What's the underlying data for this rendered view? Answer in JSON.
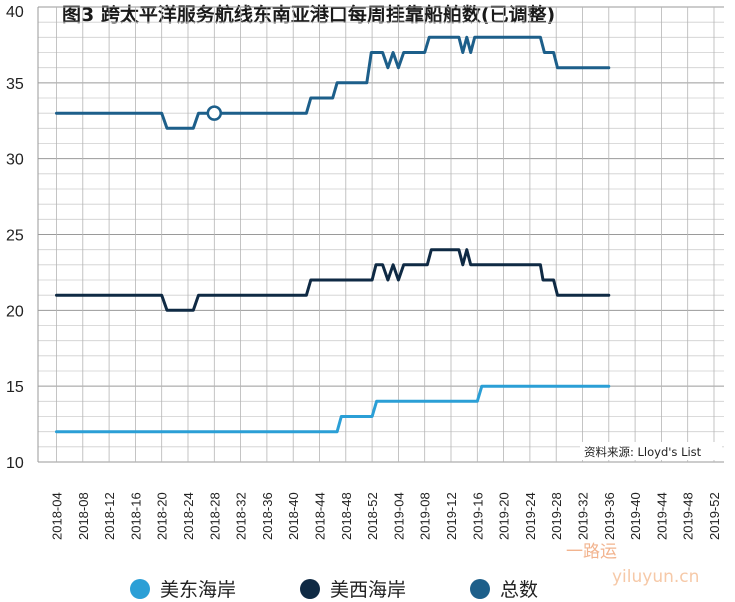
{
  "chart_data": {
    "type": "line",
    "title": "图3  跨太平洋服务航线东南亚港口每周挂靠船舶数(已调整)",
    "source": "资料来源: Lloyd's List",
    "ylim": [
      10,
      40
    ],
    "yticks": [
      10,
      15,
      20,
      25,
      30,
      35,
      40
    ],
    "grid": true,
    "legend_position": "bottom",
    "categories": [
      "2018-04",
      "2018-08",
      "2018-12",
      "2018-16",
      "2018-20",
      "2018-24",
      "2018-28",
      "2018-32",
      "2018-36",
      "2018-40",
      "2018-44",
      "2018-48",
      "2018-52",
      "2019-04",
      "2019-08",
      "2019-12",
      "2019-16",
      "2019-20",
      "2019-24",
      "2019-28",
      "2019-32",
      "2019-36",
      "2019-40",
      "2019-44",
      "2019-48",
      "2019-52"
    ],
    "series": [
      {
        "name": "美东海岸",
        "color": "#2b9fd6",
        "points": [
          [
            0,
            12
          ],
          [
            10.67,
            12
          ],
          [
            10.83,
            13
          ],
          [
            12.0,
            13
          ],
          [
            12.17,
            14
          ],
          [
            16.0,
            14
          ],
          [
            16.17,
            15
          ],
          [
            21.0,
            15
          ]
        ]
      },
      {
        "name": "美西海岸",
        "color": "#0f2a44",
        "points": [
          [
            0,
            21
          ],
          [
            4.0,
            21
          ],
          [
            4.2,
            20
          ],
          [
            5.2,
            20
          ],
          [
            5.4,
            21
          ],
          [
            9.5,
            21
          ],
          [
            9.67,
            22
          ],
          [
            12.0,
            22
          ],
          [
            12.15,
            23
          ],
          [
            12.4,
            23
          ],
          [
            12.6,
            22
          ],
          [
            12.8,
            23
          ],
          [
            13.0,
            22
          ],
          [
            13.2,
            23
          ],
          [
            14.1,
            23
          ],
          [
            14.25,
            24
          ],
          [
            15.3,
            24
          ],
          [
            15.45,
            23
          ],
          [
            15.6,
            24
          ],
          [
            15.75,
            23
          ],
          [
            18.4,
            23
          ],
          [
            18.5,
            22
          ],
          [
            18.9,
            22
          ],
          [
            19.05,
            21
          ],
          [
            21.0,
            21
          ]
        ]
      },
      {
        "name": "总数",
        "color": "#1d5f8a",
        "points": [
          [
            0,
            33
          ],
          [
            4.0,
            33
          ],
          [
            4.2,
            32
          ],
          [
            5.2,
            32
          ],
          [
            5.4,
            33
          ],
          [
            9.5,
            33
          ],
          [
            9.67,
            34
          ],
          [
            10.5,
            34
          ],
          [
            10.67,
            35
          ],
          [
            11.8,
            35
          ],
          [
            11.97,
            37
          ],
          [
            12.4,
            37
          ],
          [
            12.6,
            36
          ],
          [
            12.8,
            37
          ],
          [
            13.0,
            36
          ],
          [
            13.2,
            37
          ],
          [
            14.0,
            37
          ],
          [
            14.17,
            38
          ],
          [
            15.3,
            38
          ],
          [
            15.45,
            37
          ],
          [
            15.6,
            38
          ],
          [
            15.75,
            37
          ],
          [
            15.9,
            38
          ],
          [
            18.4,
            38
          ],
          [
            18.55,
            37
          ],
          [
            18.9,
            37
          ],
          [
            19.05,
            36
          ],
          [
            21.0,
            36
          ]
        ],
        "marker": [
          6.0,
          33
        ]
      }
    ]
  },
  "watermark": {
    "cn": "一路运",
    "en": "yiluyun.cn"
  }
}
